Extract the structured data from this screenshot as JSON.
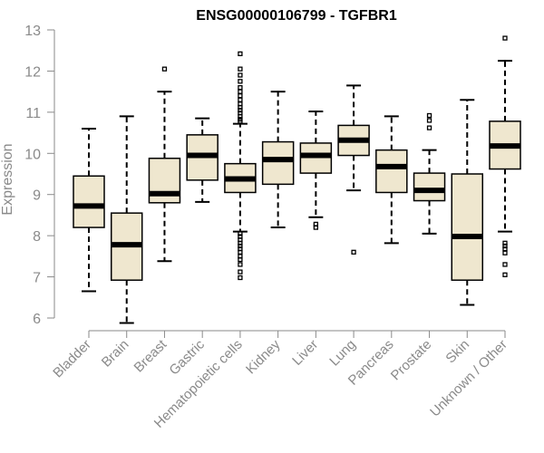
{
  "chart_data": {
    "type": "boxplot",
    "title": "ENSG00000106799 - TGFBR1",
    "xlabel": "",
    "ylabel": "Expression",
    "ylim": [
      6,
      13
    ],
    "yticks": [
      6,
      7,
      8,
      9,
      10,
      11,
      12,
      13
    ],
    "grid": false,
    "colors": {
      "box_fill": "#efe7cf",
      "box_stroke": "#000000",
      "axis": "#8a8a8a"
    },
    "categories": [
      "Bladder",
      "Brain",
      "Breast",
      "Gastric",
      "Hematopoietic cells",
      "Kidney",
      "Liver",
      "Lung",
      "Pancreas",
      "Prostate",
      "Skin",
      "Unknown / Other"
    ],
    "boxes": [
      {
        "category": "Bladder",
        "whisker_low": 6.65,
        "q1": 8.2,
        "median": 8.72,
        "q3": 9.45,
        "whisker_high": 10.6,
        "outliers": []
      },
      {
        "category": "Brain",
        "whisker_low": 5.88,
        "q1": 6.92,
        "median": 7.78,
        "q3": 8.55,
        "whisker_high": 10.9,
        "outliers": []
      },
      {
        "category": "Breast",
        "whisker_low": 7.38,
        "q1": 8.8,
        "median": 9.02,
        "q3": 9.88,
        "whisker_high": 11.5,
        "outliers": [
          12.05
        ]
      },
      {
        "category": "Gastric",
        "whisker_low": 8.82,
        "q1": 9.35,
        "median": 9.95,
        "q3": 10.45,
        "whisker_high": 10.85,
        "outliers": []
      },
      {
        "category": "Hematopoietic cells",
        "whisker_low": 8.1,
        "q1": 9.05,
        "median": 9.38,
        "q3": 9.75,
        "whisker_high": 10.72,
        "outliers": [
          12.42,
          12.05,
          11.9,
          11.75,
          11.6,
          11.5,
          11.4,
          11.3,
          11.2,
          11.12,
          11.05,
          10.98,
          10.9,
          10.83,
          10.78,
          8.05,
          7.98,
          7.9,
          7.82,
          7.75,
          7.68,
          7.6,
          7.5,
          7.42,
          7.3,
          7.12,
          6.98
        ]
      },
      {
        "category": "Kidney",
        "whisker_low": 8.2,
        "q1": 9.25,
        "median": 9.85,
        "q3": 10.28,
        "whisker_high": 11.5,
        "outliers": []
      },
      {
        "category": "Liver",
        "whisker_low": 8.45,
        "q1": 9.52,
        "median": 9.95,
        "q3": 10.25,
        "whisker_high": 11.02,
        "outliers": [
          8.28,
          8.2
        ]
      },
      {
        "category": "Lung",
        "whisker_low": 9.1,
        "q1": 9.95,
        "median": 10.32,
        "q3": 10.68,
        "whisker_high": 11.65,
        "outliers": [
          7.6
        ]
      },
      {
        "category": "Pancreas",
        "whisker_low": 7.82,
        "q1": 9.05,
        "median": 9.68,
        "q3": 10.08,
        "whisker_high": 10.9,
        "outliers": []
      },
      {
        "category": "Prostate",
        "whisker_low": 8.05,
        "q1": 8.85,
        "median": 9.1,
        "q3": 9.52,
        "whisker_high": 10.08,
        "outliers": [
          10.92,
          10.8,
          10.62
        ]
      },
      {
        "category": "Skin",
        "whisker_low": 6.32,
        "q1": 6.92,
        "median": 7.98,
        "q3": 9.5,
        "whisker_high": 11.3,
        "outliers": []
      },
      {
        "category": "Unknown / Other",
        "whisker_low": 8.1,
        "q1": 9.62,
        "median": 10.18,
        "q3": 10.78,
        "whisker_high": 12.25,
        "outliers": [
          12.8,
          7.82,
          7.75,
          7.68,
          7.58,
          7.3,
          7.05
        ]
      }
    ]
  }
}
